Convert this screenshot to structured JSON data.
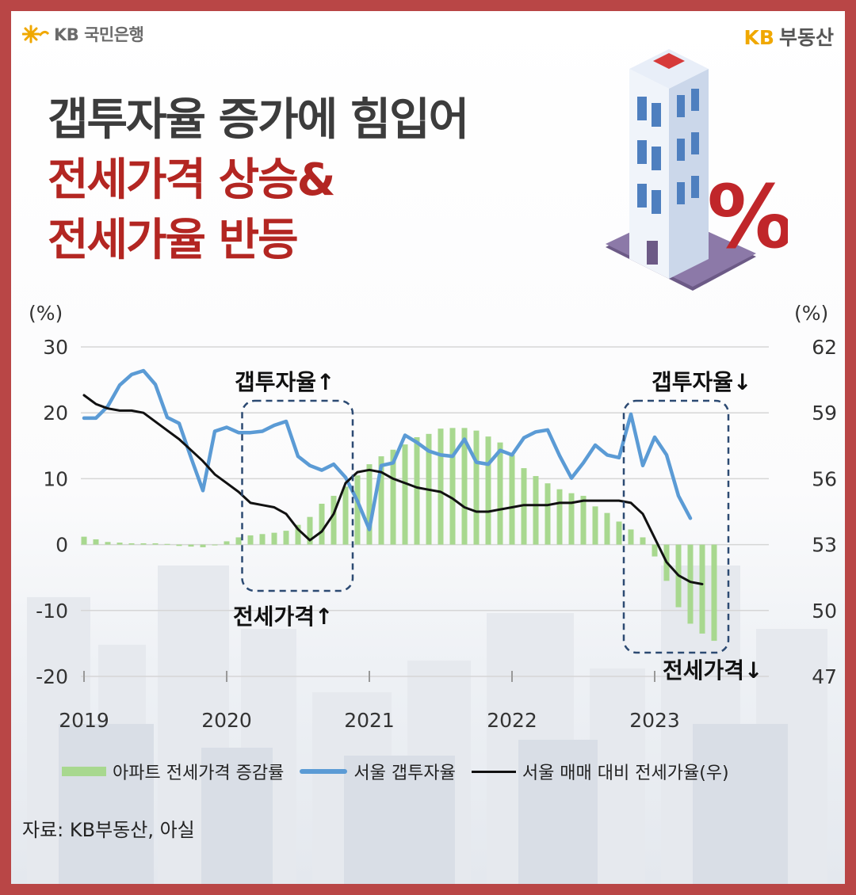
{
  "header": {
    "bank_logo": "KB 국민은행",
    "brand_kb": "KB",
    "brand_name": "부동산"
  },
  "title": {
    "line1": "갭투자율 증가에 힘입어",
    "line2": "전세가격 상승&",
    "line3": "전세가율 반등"
  },
  "colors": {
    "frame": "#b94646",
    "title_dark": "#3c3c3c",
    "title_red": "#b32622",
    "bar_green": "#a8d88f",
    "line_blue": "#5b9bd5",
    "line_black": "#111111",
    "highlight_box": "#2c4a72"
  },
  "chart_data": {
    "type": "bar+line",
    "left_axis": {
      "unit": "(%)",
      "ylim": [
        -20,
        30
      ],
      "ticks": [
        "30",
        "20",
        "10",
        "0",
        "-10",
        "-20"
      ]
    },
    "right_axis": {
      "unit": "(%)",
      "ylim": [
        47,
        62
      ],
      "ticks": [
        "62",
        "59",
        "56",
        "53",
        "50",
        "47"
      ]
    },
    "x_labels": [
      "2019",
      "2020",
      "2021",
      "2022",
      "2023"
    ],
    "x_label_index": [
      0,
      12,
      24,
      36,
      48
    ],
    "grid": true,
    "legend_position": "bottom",
    "series": [
      {
        "name": "아파트 전세가격 증감률",
        "type": "bar",
        "axis": "left",
        "values": [
          1.2,
          0.8,
          0.4,
          0.3,
          0.2,
          0.2,
          0.2,
          0.1,
          -0.2,
          -0.3,
          -0.4,
          0.0,
          0.5,
          1.1,
          1.4,
          1.6,
          1.8,
          2.1,
          3.0,
          4.2,
          6.2,
          7.4,
          8.8,
          10.5,
          12.2,
          13.4,
          14.4,
          15.2,
          16.3,
          16.8,
          17.6,
          17.7,
          17.7,
          17.3,
          16.4,
          15.5,
          13.6,
          11.6,
          10.4,
          9.3,
          8.4,
          7.8,
          7.4,
          5.8,
          4.8,
          3.5,
          2.3,
          1.1,
          -1.8,
          -5.5,
          -9.5,
          -12.0,
          -13.5,
          -14.6
        ]
      },
      {
        "name": "서울 갭투자율",
        "type": "line",
        "axis": "left",
        "values": [
          19.2,
          19.2,
          21.0,
          24.2,
          25.8,
          26.4,
          24.3,
          19.3,
          18.4,
          13.2,
          8.2,
          17.2,
          17.8,
          17.0,
          17.0,
          17.2,
          18.1,
          18.7,
          13.4,
          12.0,
          11.3,
          12.2,
          10.2,
          6.6,
          2.3,
          12.0,
          12.4,
          16.6,
          15.5,
          14.2,
          13.6,
          13.4,
          16.0,
          12.5,
          12.2,
          14.3,
          13.6,
          16.2,
          17.1,
          17.4,
          13.5,
          10.1,
          12.4,
          15.1,
          13.6,
          13.2,
          19.8,
          12.0,
          16.3,
          13.6,
          7.4,
          4.0
        ]
      },
      {
        "name": "서울 매매 대비 전세가율(우)",
        "type": "line",
        "axis": "right",
        "values": [
          59.8,
          59.4,
          59.2,
          59.1,
          59.1,
          59.0,
          58.6,
          58.2,
          57.8,
          57.3,
          56.8,
          56.2,
          55.8,
          55.4,
          54.9,
          54.8,
          54.7,
          54.4,
          53.7,
          53.2,
          53.6,
          54.4,
          55.8,
          56.3,
          56.4,
          56.3,
          56.0,
          55.8,
          55.6,
          55.5,
          55.4,
          55.1,
          54.7,
          54.5,
          54.5,
          54.6,
          54.7,
          54.8,
          54.8,
          54.8,
          54.9,
          54.9,
          55.0,
          55.0,
          55.0,
          55.0,
          54.9,
          54.4,
          53.3,
          52.2,
          51.6,
          51.3,
          51.2
        ]
      }
    ],
    "annotations": [
      {
        "label": "갭투자율↑"
      },
      {
        "label": "전세가격↑"
      },
      {
        "label": "갭투자율↓"
      },
      {
        "label": "전세가격↓"
      }
    ]
  },
  "source": "자료: KB부동산, 아실"
}
